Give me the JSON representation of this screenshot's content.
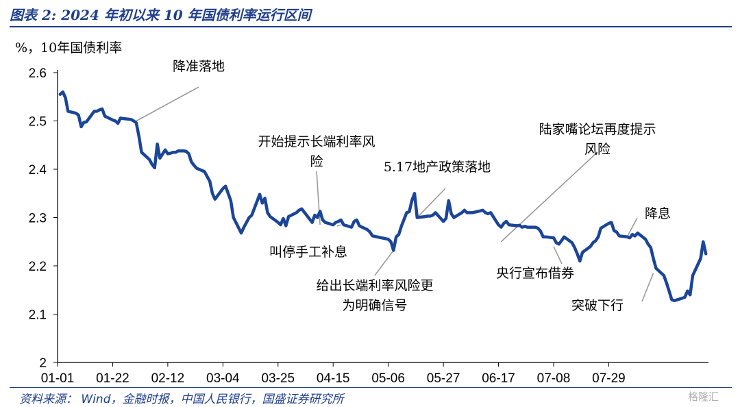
{
  "header": {
    "title": "图表 2:  2024 年初以来 10 年国债利率运行区间"
  },
  "footer": {
    "source": "资料来源：   Wind，金融时报，中国人民银行，国盛证券研究所",
    "watermark": "格隆汇"
  },
  "chart_data": {
    "type": "line",
    "ylabel": "%，10年国债利率",
    "ylim": [
      2.0,
      2.6
    ],
    "yticks": [
      "2",
      "2.1",
      "2.2",
      "2.3",
      "2.4",
      "2.5",
      "2.6"
    ],
    "ytick_values": [
      2.0,
      2.1,
      2.2,
      2.3,
      2.4,
      2.5,
      2.6
    ],
    "xticks": [
      "01-01",
      "01-22",
      "02-12",
      "03-04",
      "03-25",
      "04-15",
      "05-06",
      "05-27",
      "06-17",
      "07-08",
      "07-29"
    ],
    "grid": false,
    "series": [
      {
        "color": "#1b4597",
        "points": [
          [
            "01-02",
            2.555
          ],
          [
            "01-03",
            2.56
          ],
          [
            "01-04",
            2.548
          ],
          [
            "01-05",
            2.52
          ],
          [
            "01-08",
            2.516
          ],
          [
            "01-09",
            2.512
          ],
          [
            "01-10",
            2.488
          ],
          [
            "01-11",
            2.497
          ],
          [
            "01-12",
            2.498
          ],
          [
            "01-15",
            2.52
          ],
          [
            "01-16",
            2.52
          ],
          [
            "01-17",
            2.523
          ],
          [
            "01-18",
            2.525
          ],
          [
            "01-19",
            2.51
          ],
          [
            "01-22",
            2.502
          ],
          [
            "01-23",
            2.5
          ],
          [
            "01-24",
            2.495
          ],
          [
            "01-25",
            2.506
          ],
          [
            "01-26",
            2.505
          ],
          [
            "01-29",
            2.503
          ],
          [
            "01-30",
            2.5
          ],
          [
            "01-31",
            2.496
          ],
          [
            "02-01",
            2.468
          ],
          [
            "02-02",
            2.435
          ],
          [
            "02-05",
            2.42
          ],
          [
            "02-06",
            2.41
          ],
          [
            "02-07",
            2.403
          ],
          [
            "02-08",
            2.452
          ],
          [
            "02-09",
            2.423
          ],
          [
            "02-11",
            2.44
          ],
          [
            "02-12",
            2.432
          ],
          [
            "02-13",
            2.433
          ],
          [
            "02-14",
            2.435
          ],
          [
            "02-15",
            2.435
          ],
          [
            "02-16",
            2.438
          ],
          [
            "02-18",
            2.438
          ],
          [
            "02-19",
            2.437
          ],
          [
            "02-20",
            2.432
          ],
          [
            "02-21",
            2.415
          ],
          [
            "02-22",
            2.408
          ],
          [
            "02-23",
            2.402
          ],
          [
            "02-26",
            2.395
          ],
          [
            "02-27",
            2.385
          ],
          [
            "02-28",
            2.375
          ],
          [
            "02-29",
            2.35
          ],
          [
            "03-01",
            2.338
          ],
          [
            "03-04",
            2.36
          ],
          [
            "03-05",
            2.365
          ],
          [
            "03-06",
            2.35
          ],
          [
            "03-07",
            2.335
          ],
          [
            "03-08",
            2.3
          ],
          [
            "03-11",
            2.268
          ],
          [
            "03-12",
            2.28
          ],
          [
            "03-13",
            2.29
          ],
          [
            "03-14",
            2.3
          ],
          [
            "03-15",
            2.305
          ],
          [
            "03-18",
            2.348
          ],
          [
            "03-19",
            2.33
          ],
          [
            "03-20",
            2.34
          ],
          [
            "03-21",
            2.31
          ],
          [
            "03-22",
            2.302
          ],
          [
            "03-25",
            2.29
          ],
          [
            "03-26",
            2.285
          ],
          [
            "03-27",
            2.298
          ],
          [
            "03-28",
            2.283
          ],
          [
            "03-29",
            2.302
          ],
          [
            "04-01",
            2.31
          ],
          [
            "04-02",
            2.315
          ],
          [
            "04-03",
            2.318
          ],
          [
            "04-07",
            2.29
          ],
          [
            "04-08",
            2.305
          ],
          [
            "04-09",
            2.3
          ],
          [
            "04-10",
            2.313
          ],
          [
            "04-11",
            2.295
          ],
          [
            "04-12",
            2.29
          ],
          [
            "04-15",
            2.285
          ],
          [
            "04-16",
            2.29
          ],
          [
            "04-17",
            2.292
          ],
          [
            "04-18",
            2.295
          ],
          [
            "04-19",
            2.285
          ],
          [
            "04-22",
            2.28
          ],
          [
            "04-23",
            2.292
          ],
          [
            "04-24",
            2.295
          ],
          [
            "04-25",
            2.283
          ],
          [
            "04-26",
            2.28
          ],
          [
            "04-28",
            2.275
          ],
          [
            "04-29",
            2.27
          ],
          [
            "04-30",
            2.262
          ],
          [
            "05-06",
            2.255
          ],
          [
            "05-07",
            2.25
          ],
          [
            "05-08",
            2.232
          ],
          [
            "05-09",
            2.26
          ],
          [
            "05-10",
            2.265
          ],
          [
            "05-11",
            2.282
          ],
          [
            "05-13",
            2.31
          ],
          [
            "05-14",
            2.312
          ],
          [
            "05-15",
            2.335
          ],
          [
            "05-16",
            2.35
          ],
          [
            "05-17",
            2.3
          ],
          [
            "05-20",
            2.302
          ],
          [
            "05-21",
            2.303
          ],
          [
            "05-22",
            2.303
          ],
          [
            "05-23",
            2.305
          ],
          [
            "05-24",
            2.31
          ],
          [
            "05-27",
            2.292
          ],
          [
            "05-28",
            2.298
          ],
          [
            "05-29",
            2.335
          ],
          [
            "05-30",
            2.308
          ],
          [
            "05-31",
            2.3
          ],
          [
            "06-03",
            2.31
          ],
          [
            "06-04",
            2.315
          ],
          [
            "06-05",
            2.31
          ],
          [
            "06-06",
            2.31
          ],
          [
            "06-07",
            2.31
          ],
          [
            "06-11",
            2.315
          ],
          [
            "06-12",
            2.31
          ],
          [
            "06-13",
            2.308
          ],
          [
            "06-14",
            2.31
          ],
          [
            "06-17",
            2.285
          ],
          [
            "06-18",
            2.28
          ],
          [
            "06-19",
            2.288
          ],
          [
            "06-20",
            2.292
          ],
          [
            "06-21",
            2.285
          ],
          [
            "06-24",
            2.283
          ],
          [
            "06-25",
            2.284
          ],
          [
            "06-26",
            2.28
          ],
          [
            "06-27",
            2.282
          ],
          [
            "06-28",
            2.28
          ],
          [
            "07-01",
            2.28
          ],
          [
            "07-02",
            2.278
          ],
          [
            "07-03",
            2.272
          ],
          [
            "07-04",
            2.26
          ],
          [
            "07-05",
            2.26
          ],
          [
            "07-08",
            2.258
          ],
          [
            "07-09",
            2.248
          ],
          [
            "07-10",
            2.245
          ],
          [
            "07-11",
            2.252
          ],
          [
            "07-12",
            2.26
          ],
          [
            "07-15",
            2.248
          ],
          [
            "07-16",
            2.238
          ],
          [
            "07-17",
            2.225
          ],
          [
            "07-18",
            2.21
          ],
          [
            "07-19",
            2.228
          ],
          [
            "07-22",
            2.24
          ],
          [
            "07-23",
            2.248
          ],
          [
            "07-24",
            2.252
          ],
          [
            "07-25",
            2.26
          ],
          [
            "07-26",
            2.278
          ],
          [
            "07-29",
            2.288
          ],
          [
            "07-30",
            2.29
          ],
          [
            "07-31",
            2.273
          ],
          [
            "08-01",
            2.27
          ],
          [
            "08-02",
            2.262
          ],
          [
            "08-05",
            2.26
          ],
          [
            "08-06",
            2.258
          ],
          [
            "08-07",
            2.265
          ],
          [
            "08-08",
            2.262
          ],
          [
            "08-09",
            2.268
          ],
          [
            "08-12",
            2.255
          ],
          [
            "08-13",
            2.245
          ],
          [
            "08-14",
            2.238
          ],
          [
            "08-15",
            2.215
          ],
          [
            "08-16",
            2.195
          ],
          [
            "08-19",
            2.18
          ],
          [
            "08-20",
            2.165
          ],
          [
            "08-21",
            2.148
          ],
          [
            "08-22",
            2.13
          ],
          [
            "08-23",
            2.128
          ],
          [
            "08-26",
            2.133
          ],
          [
            "08-27",
            2.135
          ],
          [
            "08-28",
            2.148
          ],
          [
            "08-29",
            2.14
          ],
          [
            "08-30",
            2.18
          ],
          [
            "09-02",
            2.215
          ],
          [
            "09-03",
            2.25
          ],
          [
            "09-04",
            2.225
          ]
        ]
      }
    ],
    "annotations": [
      {
        "lines": [
          "降准落地"
        ],
        "date": "01-30",
        "value": 2.497
      },
      {
        "lines": [
          "开始提示长端利率风",
          "险"
        ],
        "date": "04-10",
        "value": 2.285
      },
      {
        "lines": [
          "叫停手工补息"
        ],
        "date": "04-18",
        "value": 2.285
      },
      {
        "lines": [
          "给出长端利率风险更",
          "为明确信号"
        ],
        "date": "05-08",
        "value": 2.232
      },
      {
        "lines": [
          "5.17地产政策落地"
        ],
        "date": "05-17",
        "value": 2.3
      },
      {
        "lines": [
          "陆家嘴论坛再度提示",
          "风险"
        ],
        "date": "06-18",
        "value": 2.25
      },
      {
        "lines": [
          "央行宣布借券"
        ],
        "date": "07-08",
        "value": 2.24
      },
      {
        "lines": [
          "降息"
        ],
        "date": "08-05",
        "value": 2.26
      },
      {
        "lines": [
          "突破下行"
        ],
        "date": "08-15",
        "value": 2.185
      }
    ]
  }
}
